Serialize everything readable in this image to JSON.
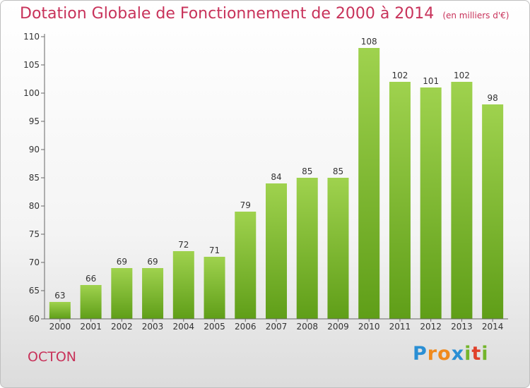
{
  "header": {
    "title": "Dotation Globale de Fonctionnement de 2000 à 2014",
    "subtitle": "(en milliers d'€)"
  },
  "commune": "OCTON",
  "logo": {
    "text": "Proxiti",
    "letters": [
      "P",
      "r",
      "o",
      "x",
      "i",
      "t",
      "i"
    ],
    "colors": [
      "#2a8fd4",
      "#f08a1c",
      "#f08a1c",
      "#2a8fd4",
      "#74b52c",
      "#e0402a",
      "#74b52c"
    ]
  },
  "chart_data": {
    "type": "bar",
    "categories": [
      "2000",
      "2001",
      "2002",
      "2003",
      "2004",
      "2005",
      "2006",
      "2007",
      "2008",
      "2009",
      "2010",
      "2011",
      "2012",
      "2013",
      "2014"
    ],
    "values": [
      63,
      66,
      69,
      69,
      72,
      71,
      79,
      84,
      85,
      85,
      108,
      102,
      101,
      102,
      98
    ],
    "title": "Dotation Globale de Fonctionnement de 2000 à 2014",
    "subtitle": "(en milliers d'€)",
    "xlabel": "",
    "ylabel": "",
    "ylim": [
      60,
      110
    ],
    "yticks": [
      60,
      65,
      70,
      75,
      80,
      85,
      90,
      95,
      100,
      105,
      110
    ],
    "grid": false,
    "colors": {
      "bar_top": "#9fd24e",
      "bar_bottom": "#5f9e18",
      "axis": "#666666"
    }
  }
}
